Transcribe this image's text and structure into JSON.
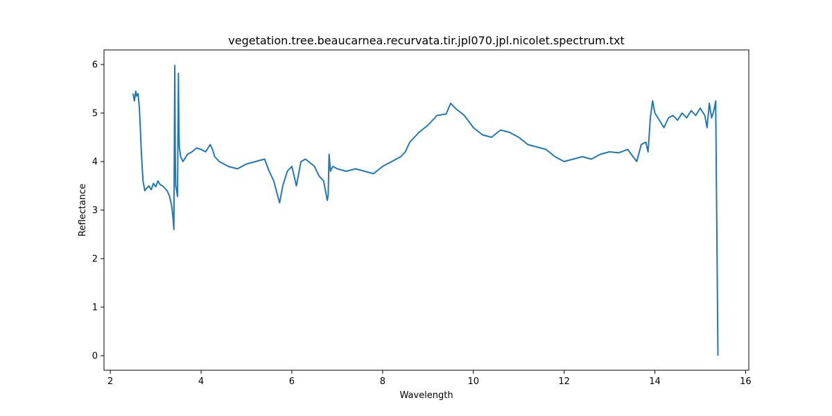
{
  "chart_data": {
    "type": "line",
    "title": "vegetation.tree.beaucarnea.recurvata.tir.jpl070.jpl.nicolet.spectrum.txt",
    "xlabel": "Wavelength",
    "ylabel": "Reflectance",
    "xlim": [
      1.86,
      16.07
    ],
    "ylim": [
      -0.3,
      6.3
    ],
    "xticks": [
      2,
      4,
      6,
      8,
      10,
      12,
      14,
      16
    ],
    "yticks": [
      0,
      1,
      2,
      3,
      4,
      5,
      6
    ],
    "grid": false,
    "legend": "none",
    "series": [
      {
        "color": "#1f77b4",
        "x": [
          2.5,
          2.53,
          2.56,
          2.58,
          2.61,
          2.64,
          2.66,
          2.68,
          2.7,
          2.72,
          2.74,
          2.76,
          2.8,
          2.85,
          2.9,
          2.95,
          3.0,
          3.05,
          3.1,
          3.15,
          3.2,
          3.25,
          3.3,
          3.35,
          3.38,
          3.4,
          3.42,
          3.43,
          3.44,
          3.46,
          3.48,
          3.5,
          3.51,
          3.52,
          3.55,
          3.6,
          3.7,
          3.8,
          3.9,
          4.0,
          4.1,
          4.2,
          4.25,
          4.3,
          4.4,
          4.6,
          4.8,
          5.0,
          5.2,
          5.4,
          5.5,
          5.6,
          5.7,
          5.73,
          5.8,
          5.9,
          6.0,
          6.1,
          6.2,
          6.3,
          6.5,
          6.6,
          6.7,
          6.78,
          6.8,
          6.82,
          6.85,
          6.9,
          7.0,
          7.2,
          7.4,
          7.6,
          7.8,
          8.0,
          8.2,
          8.4,
          8.5,
          8.6,
          8.8,
          9.0,
          9.2,
          9.4,
          9.5,
          9.6,
          9.8,
          10.0,
          10.2,
          10.4,
          10.6,
          10.8,
          11.0,
          11.2,
          11.4,
          11.6,
          11.8,
          12.0,
          12.2,
          12.4,
          12.6,
          12.8,
          13.0,
          13.2,
          13.4,
          13.6,
          13.7,
          13.8,
          13.85,
          13.9,
          13.95,
          14.0,
          14.1,
          14.2,
          14.3,
          14.4,
          14.5,
          14.6,
          14.7,
          14.8,
          14.9,
          15.0,
          15.1,
          15.15,
          15.2,
          15.25,
          15.3,
          15.34,
          15.39
        ],
        "y": [
          5.4,
          5.25,
          5.45,
          5.35,
          5.4,
          5.1,
          4.7,
          4.25,
          3.9,
          3.6,
          3.5,
          3.4,
          3.45,
          3.5,
          3.42,
          3.55,
          3.48,
          3.6,
          3.52,
          3.5,
          3.45,
          3.4,
          3.3,
          3.1,
          2.85,
          2.6,
          5.98,
          4.2,
          3.5,
          3.4,
          3.28,
          5.82,
          4.7,
          4.3,
          4.1,
          4.0,
          4.15,
          4.2,
          4.28,
          4.25,
          4.2,
          4.35,
          4.25,
          4.1,
          4.0,
          3.9,
          3.85,
          3.95,
          4.0,
          4.05,
          3.8,
          3.6,
          3.25,
          3.15,
          3.5,
          3.8,
          3.9,
          3.5,
          4.0,
          4.05,
          3.9,
          3.7,
          3.6,
          3.2,
          3.3,
          4.15,
          3.8,
          3.9,
          3.85,
          3.8,
          3.85,
          3.8,
          3.75,
          3.9,
          4.0,
          4.1,
          4.2,
          4.4,
          4.6,
          4.75,
          4.95,
          4.98,
          5.2,
          5.1,
          4.95,
          4.7,
          4.55,
          4.5,
          4.65,
          4.6,
          4.5,
          4.35,
          4.3,
          4.25,
          4.1,
          4.0,
          4.05,
          4.1,
          4.05,
          4.15,
          4.2,
          4.18,
          4.25,
          4.0,
          4.35,
          4.4,
          4.2,
          4.9,
          5.25,
          5.0,
          4.85,
          4.7,
          4.9,
          4.95,
          4.85,
          5.0,
          4.9,
          5.05,
          4.95,
          5.1,
          4.95,
          4.7,
          5.2,
          4.9,
          5.05,
          5.25,
          0.0
        ]
      }
    ]
  }
}
